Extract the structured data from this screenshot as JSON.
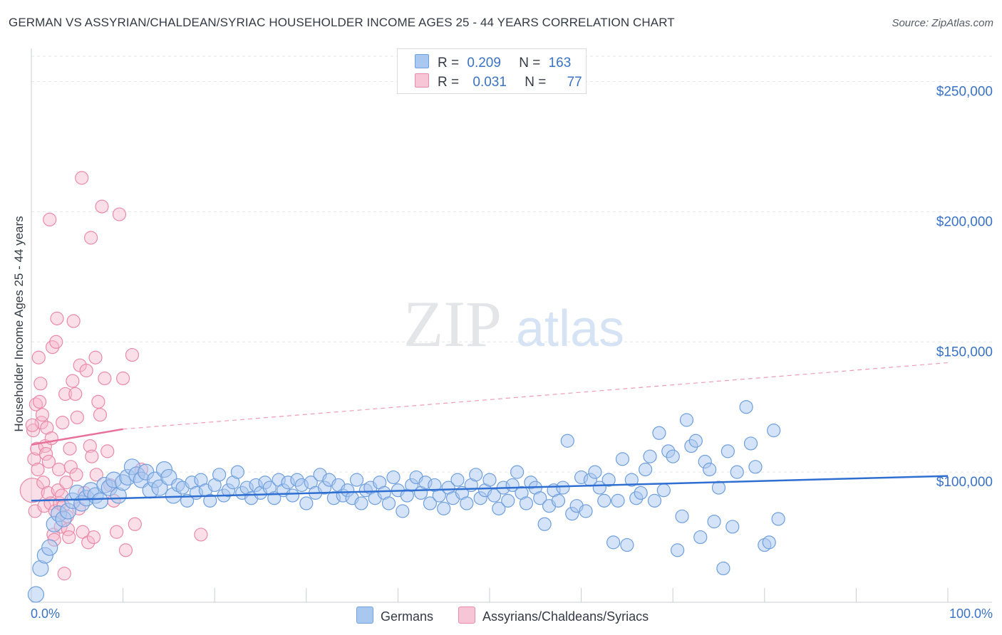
{
  "title": "GERMAN VS ASSYRIAN/CHALDEAN/SYRIAC HOUSEHOLDER INCOME AGES 25 - 44 YEARS CORRELATION CHART",
  "source": "Source: ZipAtlas.com",
  "watermark": {
    "zip": "ZIP",
    "atlas": "atlas"
  },
  "legend": {
    "rows": [
      {
        "r_label": "R =",
        "r_value": "0.209",
        "n_label": "N =",
        "n_value": "163"
      },
      {
        "r_label": "R =",
        "r_value": "0.031",
        "n_label": "N =",
        "n_value": "77"
      }
    ]
  },
  "bottom_legend": [
    "Germans",
    "Assyrians/Chaldeans/Syriacs"
  ],
  "colors": {
    "blue_fill": "#a9c8f0",
    "blue_stroke": "#6f9fdc",
    "blue_line": "#2f6fd1",
    "pink_fill": "#f6b8cb",
    "pink_stroke": "#e98aa8",
    "pink_line": "#e8709a",
    "axis_text": "#3a72c4",
    "grid": "#e2e5ea"
  },
  "chart_data": {
    "type": "scatter",
    "title": "GERMAN VS ASSYRIAN/CHALDEAN/SYRIAC HOUSEHOLDER INCOME AGES 25 - 44 YEARS CORRELATION CHART",
    "xlabel": "",
    "ylabel": "Householder Income Ages 25 - 44 years",
    "xlim": [
      0,
      100
    ],
    "ylim": [
      50000,
      260000
    ],
    "x_tick_labels": [
      "0.0%",
      "100.0%"
    ],
    "y_ticks": [
      100000,
      150000,
      200000,
      250000
    ],
    "y_tick_labels": [
      "$100,000",
      "$150,000",
      "$200,000",
      "$250,000"
    ],
    "grid": true,
    "legend_position": "top-center",
    "series": [
      {
        "name": "Germans",
        "color": "#6f9fdc",
        "R": 0.209,
        "N": 163,
        "trend": {
          "x": [
            0,
            100
          ],
          "y": [
            89000,
            98500
          ],
          "style": "solid"
        },
        "points": [
          [
            0.5,
            53000
          ],
          [
            1,
            63000
          ],
          [
            1.5,
            68000
          ],
          [
            2,
            71000
          ],
          [
            2.5,
            80000
          ],
          [
            3,
            84000
          ],
          [
            3.5,
            82000
          ],
          [
            4,
            85000
          ],
          [
            4.5,
            89000
          ],
          [
            5,
            92000
          ],
          [
            5.5,
            88000
          ],
          [
            6,
            90000
          ],
          [
            6.5,
            93000
          ],
          [
            7,
            91000
          ],
          [
            7.5,
            89000
          ],
          [
            8,
            95000
          ],
          [
            8.5,
            94000
          ],
          [
            9,
            97000
          ],
          [
            9.5,
            91000
          ],
          [
            10,
            96000
          ],
          [
            10.5,
            98000
          ],
          [
            11,
            102000
          ],
          [
            11.5,
            99000
          ],
          [
            12,
            97000
          ],
          [
            12.5,
            100000
          ],
          [
            13,
            93000
          ],
          [
            13.5,
            97000
          ],
          [
            14,
            94000
          ],
          [
            14.5,
            101000
          ],
          [
            15,
            98000
          ],
          [
            15.5,
            91000
          ],
          [
            16,
            95000
          ],
          [
            16.5,
            94000
          ],
          [
            17,
            89000
          ],
          [
            17.5,
            96000
          ],
          [
            18,
            92000
          ],
          [
            18.5,
            97000
          ],
          [
            19,
            93000
          ],
          [
            19.5,
            89000
          ],
          [
            20,
            95000
          ],
          [
            20.5,
            99000
          ],
          [
            21,
            91000
          ],
          [
            21.5,
            93000
          ],
          [
            22,
            96000
          ],
          [
            22.5,
            100000
          ],
          [
            23,
            92000
          ],
          [
            23.5,
            94000
          ],
          [
            24,
            90000
          ],
          [
            24.5,
            95000
          ],
          [
            25,
            92000
          ],
          [
            25.5,
            96000
          ],
          [
            26,
            94000
          ],
          [
            26.5,
            90000
          ],
          [
            27,
            97000
          ],
          [
            27.5,
            93000
          ],
          [
            28,
            96000
          ],
          [
            28.5,
            91000
          ],
          [
            29,
            97000
          ],
          [
            29.5,
            95000
          ],
          [
            30,
            88000
          ],
          [
            30.5,
            96000
          ],
          [
            31,
            92000
          ],
          [
            31.5,
            99000
          ],
          [
            32,
            94000
          ],
          [
            32.5,
            97000
          ],
          [
            33,
            90000
          ],
          [
            33.5,
            95000
          ],
          [
            34,
            91000
          ],
          [
            34.5,
            93000
          ],
          [
            35,
            90000
          ],
          [
            35.5,
            97000
          ],
          [
            36,
            88000
          ],
          [
            36.5,
            93000
          ],
          [
            37,
            94000
          ],
          [
            37.5,
            90000
          ],
          [
            38,
            96000
          ],
          [
            38.5,
            92000
          ],
          [
            39,
            88000
          ],
          [
            39.5,
            98000
          ],
          [
            40,
            93000
          ],
          [
            40.5,
            85000
          ],
          [
            41,
            91000
          ],
          [
            41.5,
            95000
          ],
          [
            42,
            98000
          ],
          [
            42.5,
            92000
          ],
          [
            43,
            96000
          ],
          [
            43.5,
            88000
          ],
          [
            44,
            95000
          ],
          [
            44.5,
            91000
          ],
          [
            45,
            86000
          ],
          [
            45.5,
            94000
          ],
          [
            46,
            90000
          ],
          [
            46.5,
            97000
          ],
          [
            47,
            92000
          ],
          [
            47.5,
            88000
          ],
          [
            48,
            95000
          ],
          [
            48.5,
            99000
          ],
          [
            49,
            90000
          ],
          [
            49.5,
            93000
          ],
          [
            50,
            97000
          ],
          [
            50.5,
            91000
          ],
          [
            51,
            86000
          ],
          [
            51.5,
            94000
          ],
          [
            52,
            89000
          ],
          [
            52.5,
            95000
          ],
          [
            53,
            100000
          ],
          [
            53.5,
            92000
          ],
          [
            54,
            88000
          ],
          [
            54.5,
            96000
          ],
          [
            55,
            94000
          ],
          [
            55.5,
            90000
          ],
          [
            56,
            80000
          ],
          [
            56.5,
            87000
          ],
          [
            57,
            93000
          ],
          [
            57.5,
            89000
          ],
          [
            58,
            94000
          ],
          [
            58.5,
            112000
          ],
          [
            59,
            84000
          ],
          [
            59.5,
            87000
          ],
          [
            60,
            98000
          ],
          [
            60.5,
            85000
          ],
          [
            61,
            97000
          ],
          [
            61.5,
            100000
          ],
          [
            62,
            94000
          ],
          [
            62.5,
            89000
          ],
          [
            63,
            97000
          ],
          [
            63.5,
            73000
          ],
          [
            64,
            89000
          ],
          [
            64.5,
            105000
          ],
          [
            65,
            72000
          ],
          [
            65.5,
            97000
          ],
          [
            66,
            90000
          ],
          [
            66.5,
            92000
          ],
          [
            67,
            101000
          ],
          [
            67.5,
            106000
          ],
          [
            68,
            89000
          ],
          [
            68.5,
            115000
          ],
          [
            69,
            93000
          ],
          [
            69.5,
            108000
          ],
          [
            70,
            106000
          ],
          [
            70.5,
            70000
          ],
          [
            71,
            83000
          ],
          [
            71.5,
            120000
          ],
          [
            72,
            110000
          ],
          [
            72.5,
            112000
          ],
          [
            73,
            75000
          ],
          [
            73.5,
            104000
          ],
          [
            74,
            101000
          ],
          [
            74.5,
            81000
          ],
          [
            75,
            94000
          ],
          [
            75.5,
            63000
          ],
          [
            76,
            108000
          ],
          [
            76.5,
            79000
          ],
          [
            77,
            100000
          ],
          [
            78,
            125000
          ],
          [
            78.5,
            111000
          ],
          [
            79,
            102000
          ],
          [
            80,
            72000
          ],
          [
            80.5,
            73000
          ],
          [
            81,
            116000
          ],
          [
            81.5,
            82000
          ]
        ]
      },
      {
        "name": "Assyrians/Chaldeans/Syriacs",
        "color": "#e98aa8",
        "R": 0.031,
        "N": 77,
        "trend": {
          "x": [
            0,
            10,
            100
          ],
          "y": [
            110500,
            116500,
            142000
          ],
          "solid_until": 10
        },
        "points": [
          [
            0.1,
            93000
          ],
          [
            0.2,
            116000
          ],
          [
            0.3,
            105000
          ],
          [
            0.4,
            85000
          ],
          [
            0.5,
            126000
          ],
          [
            0.6,
            109000
          ],
          [
            0.7,
            101000
          ],
          [
            0.8,
            144000
          ],
          [
            0.9,
            127000
          ],
          [
            1,
            134000
          ],
          [
            1.1,
            119000
          ],
          [
            1.2,
            122000
          ],
          [
            1.3,
            96000
          ],
          [
            1.4,
            87000
          ],
          [
            1.5,
            110000
          ],
          [
            1.6,
            107000
          ],
          [
            1.7,
            117000
          ],
          [
            1.8,
            92000
          ],
          [
            1.9,
            104000
          ],
          [
            2,
            197000
          ],
          [
            2.1,
            88000
          ],
          [
            2.2,
            113000
          ],
          [
            2.3,
            148000
          ],
          [
            2.4,
            76000
          ],
          [
            2.5,
            74000
          ],
          [
            2.6,
            85000
          ],
          [
            2.7,
            150000
          ],
          [
            2.8,
            159000
          ],
          [
            2.9,
            93000
          ],
          [
            3,
            101000
          ],
          [
            3.1,
            88000
          ],
          [
            3.2,
            79000
          ],
          [
            3.3,
            91000
          ],
          [
            3.4,
            119000
          ],
          [
            3.5,
            87000
          ],
          [
            3.6,
            61000
          ],
          [
            3.7,
            130000
          ],
          [
            3.8,
            96000
          ],
          [
            3.9,
            83000
          ],
          [
            4,
            78000
          ],
          [
            4.1,
            75000
          ],
          [
            4.2,
            109000
          ],
          [
            4.3,
            102000
          ],
          [
            4.5,
            135000
          ],
          [
            4.6,
            158000
          ],
          [
            4.8,
            130000
          ],
          [
            4.9,
            99000
          ],
          [
            5,
            121000
          ],
          [
            5.2,
            86000
          ],
          [
            5.3,
            141000
          ],
          [
            5.5,
            213000
          ],
          [
            5.6,
            77000
          ],
          [
            5.8,
            92000
          ],
          [
            6,
            139000
          ],
          [
            6.2,
            73000
          ],
          [
            6.4,
            110000
          ],
          [
            6.5,
            190000
          ],
          [
            6.6,
            106000
          ],
          [
            6.8,
            75000
          ],
          [
            7,
            144000
          ],
          [
            7.1,
            99000
          ],
          [
            7.3,
            127000
          ],
          [
            7.5,
            122000
          ],
          [
            7.7,
            202000
          ],
          [
            8,
            136000
          ],
          [
            8.3,
            108000
          ],
          [
            8.6,
            95000
          ],
          [
            9,
            89000
          ],
          [
            9.3,
            77000
          ],
          [
            9.6,
            199000
          ],
          [
            10,
            136000
          ],
          [
            10.3,
            70000
          ],
          [
            11,
            145000
          ],
          [
            11.3,
            80000
          ],
          [
            12,
            101000
          ],
          [
            18.5,
            76000
          ],
          [
            0.1,
            118000
          ]
        ]
      }
    ]
  }
}
